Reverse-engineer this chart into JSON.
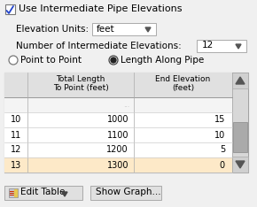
{
  "bg_color": "#f0f0f0",
  "title_text": "Use Intermediate Pipe Elevations",
  "checkbox_checked": true,
  "elevation_units_label": "Elevation Units:",
  "elevation_units_value": "feet",
  "num_elevations_label": "Number of Intermediate Elevations:",
  "num_elevations_value": "12",
  "radio1_label": "Point to Point",
  "radio1_selected": false,
  "radio2_label": "Length Along Pipe",
  "radio2_selected": true,
  "col2_header": "Total Length\nTo Point (feet)",
  "col3_header": "End Elevation\n(feet)",
  "table_rows": [
    [
      "10",
      "1000",
      "15"
    ],
    [
      "11",
      "1100",
      "10"
    ],
    [
      "12",
      "1200",
      "5"
    ],
    [
      "13",
      "1300",
      "0"
    ]
  ],
  "highlighted_row": 3,
  "highlight_color": "#fde9c8",
  "table_header_bg": "#e0e0e0",
  "btn1_label": "Edit Table",
  "btn2_label": "Show Graph...",
  "dropdown_bg": "#ffffff",
  "text_color": "#000000",
  "partial_row_vals": [
    "",
    "...",
    "..."
  ]
}
